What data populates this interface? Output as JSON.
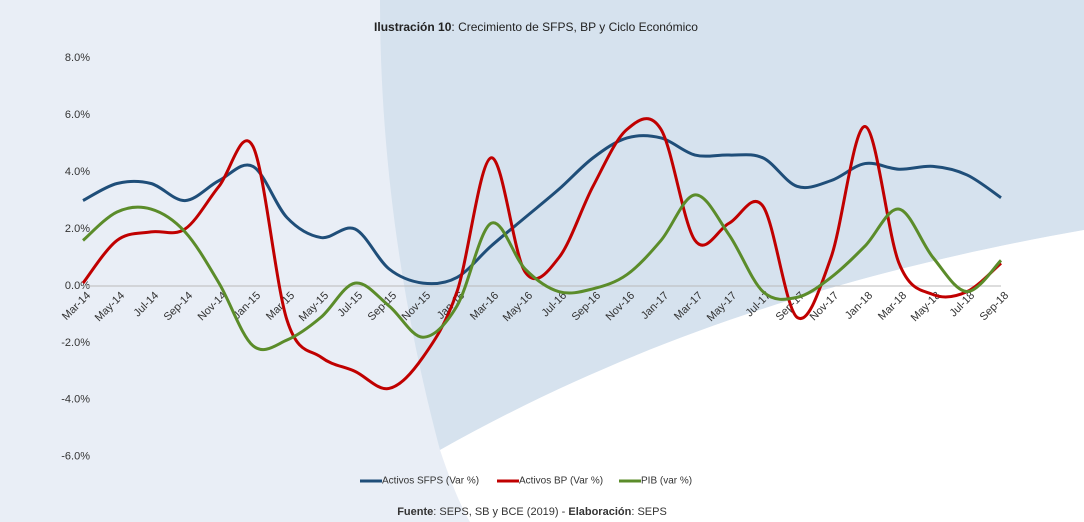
{
  "chart_data": {
    "type": "line",
    "title_bold": "Ilustración 10",
    "title": ": Crecimiento de SFPS, BP y Ciclo Económico",
    "source_parts": [
      {
        "text": "Fuente",
        "bold": true
      },
      {
        "text": ": SEPS, SB y BCE (2019) - ",
        "bold": false
      },
      {
        "text": "Elaboración",
        "bold": true
      },
      {
        "text": ": SEPS",
        "bold": false
      }
    ],
    "categories": [
      "Mar-14",
      "May-14",
      "Jul-14",
      "Sep-14",
      "Nov-14",
      "Jan-15",
      "Mar-15",
      "May-15",
      "Jul-15",
      "Sep-15",
      "Nov-15",
      "Jan-16",
      "Mar-16",
      "May-16",
      "Jul-16",
      "Sep-16",
      "Nov-16",
      "Jan-17",
      "Mar-17",
      "May-17",
      "Jul-17",
      "Sep-17",
      "Nov-17",
      "Jan-18",
      "Mar-18",
      "May-18",
      "Jul-18",
      "Sep-18"
    ],
    "series": [
      {
        "name": "Activos SFPS (Var %)",
        "color": "#1f4e79",
        "values": [
          3.0,
          3.6,
          3.6,
          3.0,
          3.7,
          4.2,
          2.4,
          1.7,
          2.0,
          0.6,
          0.1,
          0.3,
          1.4,
          2.4,
          3.4,
          4.5,
          5.2,
          5.2,
          4.6,
          4.6,
          4.5,
          3.5,
          3.7,
          4.3,
          4.1,
          4.2,
          3.9,
          3.1
        ]
      },
      {
        "name": "Activos BP (Var %)",
        "color": "#c00000",
        "values": [
          0.1,
          1.6,
          1.9,
          2.0,
          3.5,
          4.9,
          -1.2,
          -2.5,
          -3.0,
          -3.6,
          -2.5,
          -0.2,
          4.5,
          0.5,
          1.0,
          3.5,
          5.5,
          5.5,
          1.6,
          2.2,
          2.8,
          -1.1,
          1.0,
          5.6,
          0.8,
          -0.3,
          -0.2,
          0.8
        ]
      },
      {
        "name": "PIB (var %)",
        "color": "#5b8c2a",
        "values": [
          1.6,
          2.6,
          2.7,
          1.9,
          0.1,
          -2.1,
          -1.9,
          -1.1,
          0.1,
          -0.7,
          -1.8,
          -0.7,
          2.2,
          0.6,
          -0.2,
          -0.1,
          0.4,
          1.6,
          3.2,
          1.8,
          -0.2,
          -0.4,
          0.3,
          1.4,
          2.7,
          1.0,
          -0.2,
          0.9
        ]
      }
    ],
    "ylim": [
      -6.5,
      8.5
    ],
    "yticks": [
      {
        "value": -6,
        "label": "-6.0%"
      },
      {
        "value": -4,
        "label": "-4.0%"
      },
      {
        "value": -2,
        "label": "-2.0%"
      },
      {
        "value": 0,
        "label": "0.0%"
      },
      {
        "value": 2,
        "label": "2.0%"
      },
      {
        "value": 4,
        "label": "4.0%"
      },
      {
        "value": 6,
        "label": "6.0%"
      },
      {
        "value": 8,
        "label": "8.0%"
      }
    ],
    "legend": "bottom",
    "grid": false
  }
}
